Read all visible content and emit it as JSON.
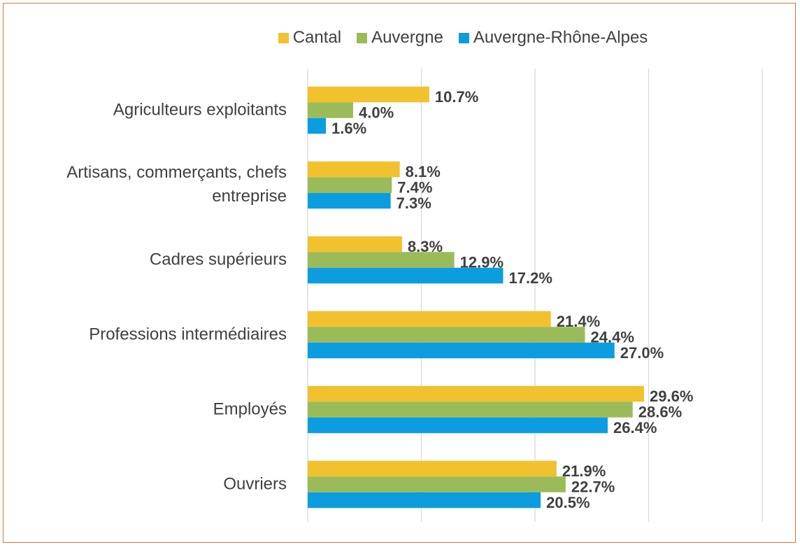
{
  "chart_data": {
    "type": "bar",
    "orientation": "horizontal",
    "categories": [
      "Agriculteurs exploitants",
      "Artisans, commerçants, chefs entreprise",
      "Cadres supérieurs",
      "Professions intermédiaires",
      "Employés",
      "Ouvriers"
    ],
    "series": [
      {
        "name": "Cantal",
        "color": "#f2c12e",
        "values": [
          10.7,
          8.1,
          8.3,
          21.4,
          29.6,
          21.9
        ],
        "value_labels": [
          "10.7%",
          "8.1%",
          "8.3%",
          "21.4%",
          "29.6%",
          "21.9%"
        ]
      },
      {
        "name": "Auvergne",
        "color": "#9bbb59",
        "values": [
          4.0,
          7.4,
          12.9,
          24.4,
          28.6,
          22.7
        ],
        "value_labels": [
          "4.0%",
          "7.4%",
          "12.9%",
          "24.4%",
          "28.6%",
          "22.7%"
        ]
      },
      {
        "name": "Auvergne-Rhône-Alpes",
        "color": "#0b9ddf",
        "values": [
          1.6,
          7.3,
          17.2,
          27.0,
          26.4,
          20.5
        ],
        "value_labels": [
          "1.6%",
          "7.3%",
          "17.2%",
          "27.0%",
          "26.4%",
          "20.5%"
        ]
      }
    ],
    "xlim": [
      0,
      40
    ],
    "xticks": [
      0,
      10,
      20,
      30,
      40
    ],
    "grid": true,
    "legend": "top"
  }
}
